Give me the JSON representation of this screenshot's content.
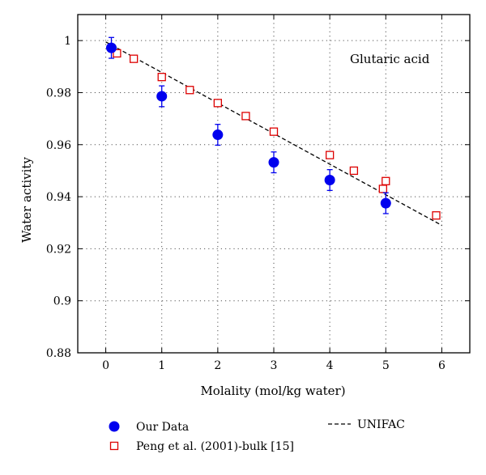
{
  "chart_data": {
    "type": "scatter",
    "annotation": "Glutaric acid",
    "xlabel": "Molality (mol/kg water)",
    "ylabel": "Water activity",
    "xlim": [
      -0.5,
      6.5
    ],
    "ylim": [
      0.88,
      1.01
    ],
    "xticks": [
      "0",
      "1",
      "2",
      "3",
      "4",
      "5",
      "6"
    ],
    "yticks": [
      "0.88",
      "0.9",
      "0.92",
      "0.94",
      "0.96",
      "0.98",
      "1"
    ],
    "grid": true,
    "legend_placement": "below-plot",
    "series": [
      {
        "name": "Our Data",
        "marker": "filled-circle",
        "color": "#0000ee",
        "x": [
          0.1,
          1.0,
          2.0,
          3.0,
          4.0,
          5.0
        ],
        "y": [
          0.9972,
          0.9786,
          0.9638,
          0.9532,
          0.9464,
          0.9375
        ],
        "error": [
          0.004,
          0.004,
          0.004,
          0.004,
          0.004,
          0.004
        ]
      },
      {
        "name": "Peng et al. (2001)-bulk [15]",
        "marker": "open-square",
        "color": "#dd0000",
        "x": [
          0.2,
          0.5,
          1.0,
          1.5,
          2.0,
          2.5,
          3.0,
          4.0,
          4.43,
          4.95,
          5.0,
          5.9
        ],
        "y": [
          0.9951,
          0.993,
          0.986,
          0.981,
          0.976,
          0.971,
          0.965,
          0.956,
          0.95,
          0.943,
          0.946,
          0.9328
        ]
      },
      {
        "name": "UNIFAC",
        "line_style": "dashed",
        "color": "#000000",
        "x": [
          0.0,
          6.0
        ],
        "y": [
          0.9995,
          0.929
        ]
      }
    ]
  }
}
